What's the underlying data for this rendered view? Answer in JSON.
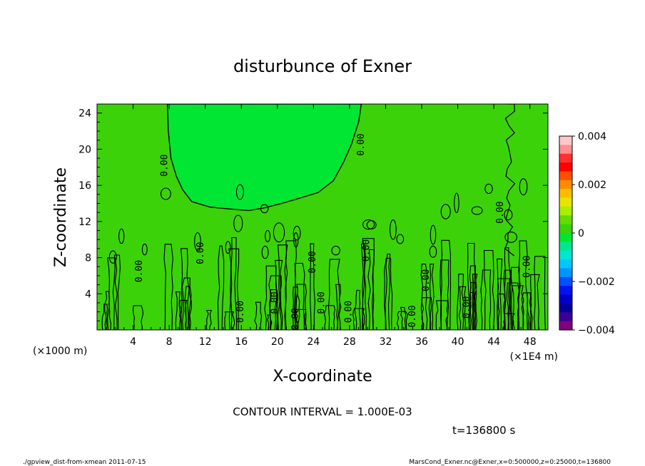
{
  "chart_data": {
    "type": "heatmap",
    "title": "disturbunce of Exner",
    "xlabel": "X-coordinate",
    "ylabel": "Z-coordinate",
    "x_unit_left": "(×1000 m)",
    "x_unit_right": "(×1E4 m)",
    "xlim": [
      0,
      50
    ],
    "ylim": [
      0,
      25
    ],
    "x_ticks": [
      4,
      8,
      12,
      16,
      20,
      24,
      28,
      32,
      36,
      40,
      44,
      48
    ],
    "y_ticks": [
      4,
      8,
      12,
      16,
      20,
      24
    ],
    "contour_label": "0.00",
    "contour_labels": [
      {
        "x": 7.8,
        "z": 18.2,
        "text": "0.00"
      },
      {
        "x": 29.6,
        "z": 20.5,
        "text": "0.00"
      },
      {
        "x": 45.0,
        "z": 13.0,
        "text": "0.00"
      },
      {
        "x": 5.0,
        "z": 6.5,
        "text": "0.00"
      },
      {
        "x": 11.8,
        "z": 8.5,
        "text": "0.00"
      },
      {
        "x": 16.2,
        "z": 2.0,
        "text": "0.00"
      },
      {
        "x": 20.0,
        "z": 3.0,
        "text": "0.00"
      },
      {
        "x": 22.3,
        "z": 1.2,
        "text": "0.00"
      },
      {
        "x": 24.2,
        "z": 7.5,
        "text": "0.00"
      },
      {
        "x": 25.2,
        "z": 3.0,
        "text": "0.00"
      },
      {
        "x": 28.2,
        "z": 2.0,
        "text": "0.00"
      },
      {
        "x": 30.2,
        "z": 8.8,
        "text": "0.00"
      },
      {
        "x": 35.3,
        "z": 1.5,
        "text": "0.00"
      },
      {
        "x": 36.8,
        "z": 5.5,
        "text": "0.00"
      },
      {
        "x": 41.3,
        "z": 2.5,
        "text": "0.00"
      },
      {
        "x": 48.0,
        "z": 7.0,
        "text": "0.00"
      }
    ],
    "colorbar": {
      "range": [
        -0.004,
        0.004
      ],
      "tick_labels": [
        "0.004",
        "0.002",
        "0",
        "−0.002",
        "−0.004"
      ],
      "tick_values": [
        0.004,
        0.002,
        0,
        -0.002,
        -0.004
      ],
      "colors_top_to_bottom": [
        "#ffc8c8",
        "#ff9090",
        "#ff3030",
        "#ff0000",
        "#ff5000",
        "#ff8c00",
        "#ffbe00",
        "#e6e600",
        "#aaee00",
        "#64dc00",
        "#3cd20a",
        "#00e632",
        "#00e690",
        "#00e6d2",
        "#00c8ff",
        "#0096ff",
        "#0050ff",
        "#0014f0",
        "#0000c8",
        "#000096",
        "#3c0096",
        "#800080"
      ]
    },
    "background_color": "#3cd20a",
    "top_region_color": "#00e632",
    "legend": "right"
  },
  "contour_interval": "CONTOUR INTERVAL = 1.000E-03",
  "time_label": "t=136800  s",
  "footer_left": "./gpview_dist-from-xmean  2011-07-15",
  "footer_right": "MarsCond_Exner.nc@Exner,x=0:500000,z=0:25000,t=136800"
}
